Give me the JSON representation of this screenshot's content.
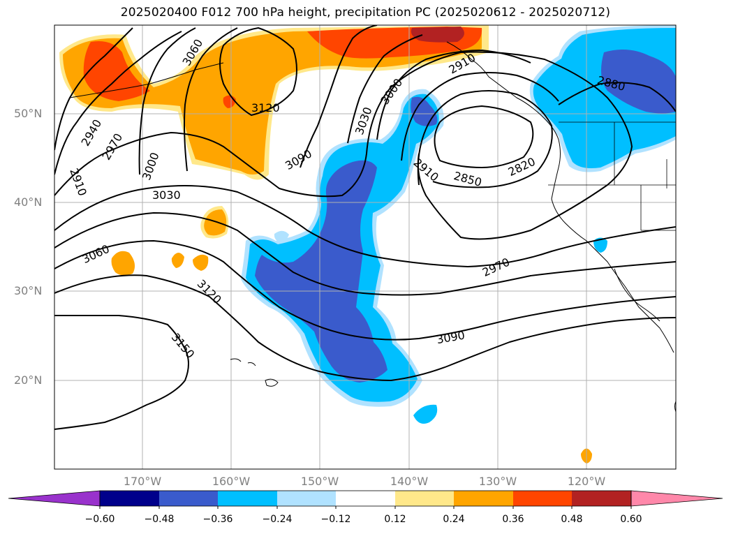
{
  "title": "2025020400 F012 700 hPa height, precipitation PC (2025020612 - 2025020712)",
  "lat_labels": [
    "50°N",
    "40°N",
    "30°N",
    "20°N"
  ],
  "lon_labels": [
    "170°W",
    "160°W",
    "150°W",
    "140°W",
    "130°W",
    "120°W"
  ],
  "contour_labels": [
    "3060",
    "3120",
    "3090",
    "3030",
    "3000",
    "2910",
    "2940",
    "2970",
    "3000",
    "2910",
    "3030",
    "3060",
    "3120",
    "3150",
    "2820",
    "2850",
    "2880",
    "2970",
    "3090",
    "2910"
  ],
  "colorbar": {
    "ticks": [
      "−0.60",
      "−0.48",
      "−0.36",
      "−0.24",
      "−0.12",
      "0.12",
      "0.24",
      "0.36",
      "0.48",
      "0.60"
    ],
    "colors": [
      "#9932CC",
      "#00008B",
      "#3A5BCC",
      "#00BFFF",
      "#B0E2FF",
      "#FFFFFF",
      "#FFE88A",
      "#FFA500",
      "#FF4500",
      "#B22222",
      "#FF88AA"
    ]
  }
}
